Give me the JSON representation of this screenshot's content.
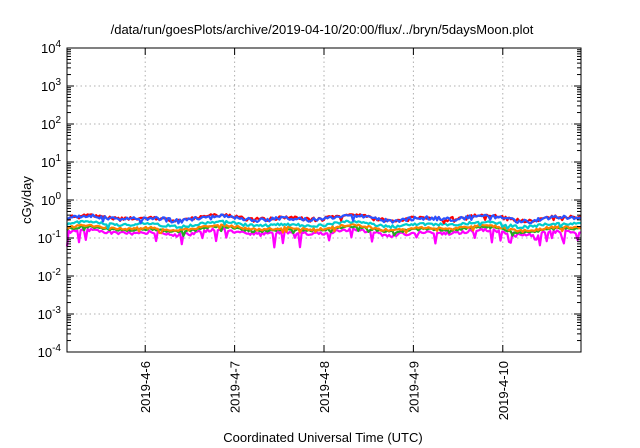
{
  "chart_data": {
    "type": "line",
    "title": "/data/run/goesPlots/archive/2019-04-10/20:00/flux/../bryn/5daysMoon.plot",
    "xlabel": "Coordinated Universal Time (UTC)",
    "ylabel": "cGy/day",
    "yscale": "log",
    "ylim": [
      0.0001,
      10000
    ],
    "y_ticks": [
      {
        "value": 0.0001,
        "base": "10",
        "exp": "-4"
      },
      {
        "value": 0.001,
        "base": "10",
        "exp": "-3"
      },
      {
        "value": 0.01,
        "base": "10",
        "exp": "-2"
      },
      {
        "value": 0.1,
        "base": "10",
        "exp": "-1"
      },
      {
        "value": 1,
        "base": "10",
        "exp": "0"
      },
      {
        "value": 10,
        "base": "10",
        "exp": "1"
      },
      {
        "value": 100,
        "base": "10",
        "exp": "2"
      },
      {
        "value": 1000,
        "base": "10",
        "exp": "3"
      },
      {
        "value": 10000,
        "base": "10",
        "exp": "4"
      }
    ],
    "xlim": [
      "2019-04-05T03:00",
      "2019-04-10T21:00"
    ],
    "x_ticks": [
      {
        "value": "2019-04-06T00:00",
        "label": "2019-4-6"
      },
      {
        "value": "2019-04-07T00:00",
        "label": "2019-4-7"
      },
      {
        "value": "2019-04-08T00:00",
        "label": "2019-4-8"
      },
      {
        "value": "2019-04-09T00:00",
        "label": "2019-4-9"
      },
      {
        "value": "2019-04-10T00:00",
        "label": "2019-4-10"
      }
    ],
    "grid": true,
    "series": [
      {
        "color": "#ff00ff",
        "level": 0.14,
        "jitter": 0.1,
        "dips": true
      },
      {
        "color": "#22aa22",
        "level": 0.17,
        "jitter": 0.07,
        "dips": false
      },
      {
        "color": "#ff8000",
        "level": 0.185,
        "jitter": 0.07,
        "dips": false
      },
      {
        "color": "#00cccc",
        "level": 0.23,
        "jitter": 0.08,
        "dips": false
      },
      {
        "color": "#ff0000",
        "level": 0.34,
        "jitter": 0.1,
        "dips": false
      },
      {
        "color": "#2a52ff",
        "level": 0.33,
        "jitter": 0.11,
        "dips": false
      }
    ]
  }
}
